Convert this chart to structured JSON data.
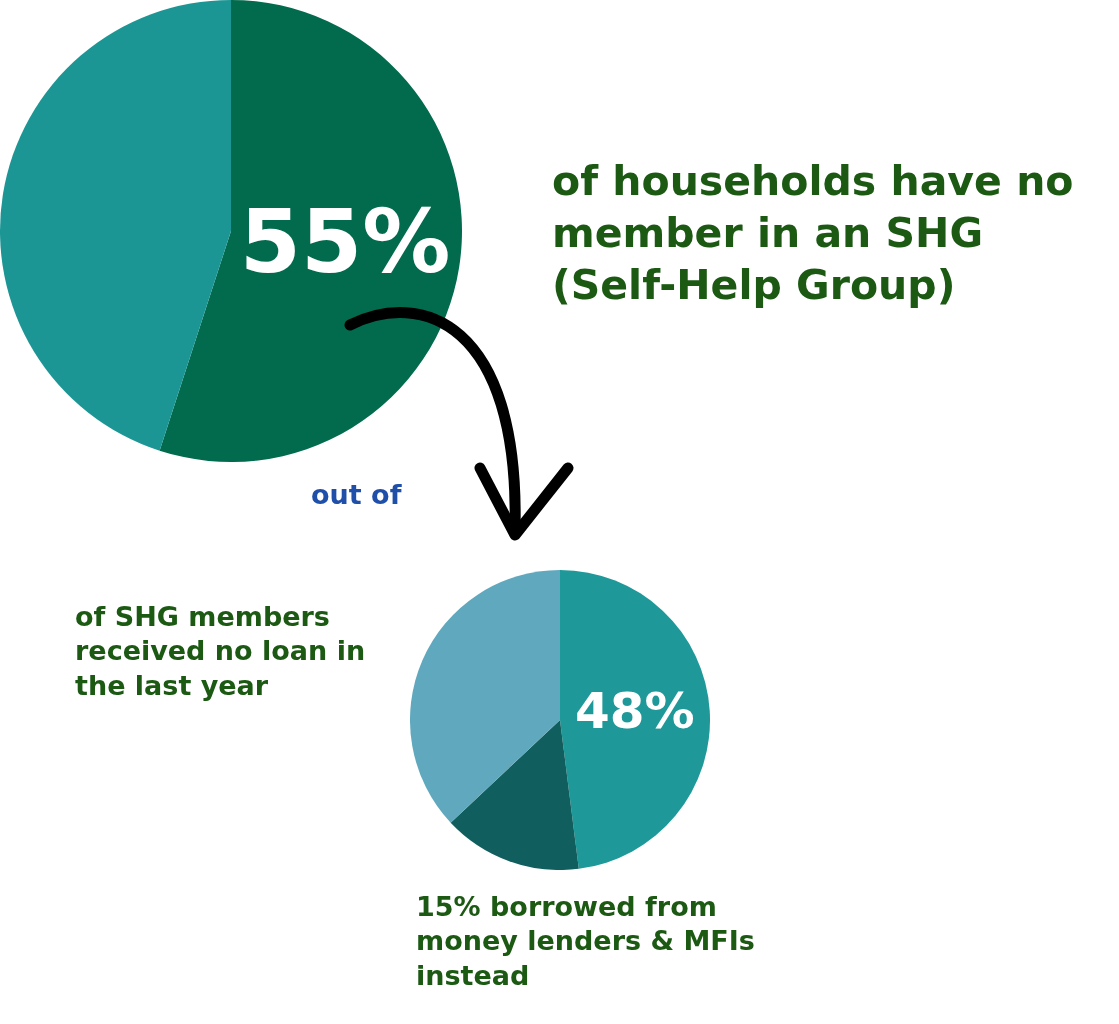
{
  "chart_data": [
    {
      "type": "pie",
      "categories": [
        null,
        null
      ],
      "values": [
        55,
        45
      ],
      "colors": [
        "#036b4d",
        "#1c9694"
      ],
      "value_labels": [
        "55%",
        null
      ],
      "annotations": [
        "of households have no member in an SHG (Self-Help Group)"
      ]
    },
    {
      "type": "pie",
      "categories": [
        null,
        null,
        null
      ],
      "values": [
        48,
        15,
        37
      ],
      "colors": [
        "#1e9898",
        "#115e5e",
        "#5fa8bd"
      ],
      "value_labels": [
        "48%",
        null,
        null
      ],
      "annotations": [
        "out of",
        "of SHG members received no loan in the last year",
        "15% borrowed from money lenders & MFIs instead"
      ]
    }
  ]
}
